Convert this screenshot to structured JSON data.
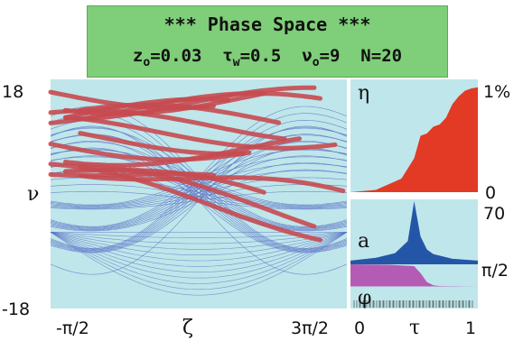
{
  "header": {
    "title": "*** Phase Space ***",
    "params": [
      {
        "sym": "z",
        "sub": "o",
        "value": "=0.03"
      },
      {
        "sym": "τ",
        "sub": "w",
        "value": "=0.5"
      },
      {
        "sym": "ν",
        "sub": "o",
        "value": "=9"
      },
      {
        "sym": "N",
        "sub": "",
        "value": "=20"
      }
    ]
  },
  "colors": {
    "panel_bg": "#bfe6ea",
    "mesh": "#5a6fc4",
    "trajectory": "#c64a50",
    "eta_fill": "#e23a25",
    "a_fill": "#2456a8",
    "phi_fill": "#b45cb4",
    "header_bg": "#7fce79"
  },
  "chart_data": [
    {
      "id": "phase-space",
      "type": "line",
      "xlabel": "ζ",
      "ylabel": "ν",
      "x_ticks": [
        "-π/2",
        "3π/2"
      ],
      "y_ticks": [
        "18",
        "-18"
      ],
      "xlim": [
        -1.5708,
        4.7124
      ],
      "ylim": [
        -18,
        18
      ]
    },
    {
      "id": "eta",
      "type": "area",
      "ylabel": "η",
      "y_ticks": [
        "1%",
        "0"
      ],
      "x": [
        0.0,
        0.2,
        0.4,
        0.5,
        0.55,
        0.6,
        0.65,
        0.7,
        0.75,
        0.8,
        0.85,
        0.9,
        0.95,
        1.0
      ],
      "values": [
        0.0,
        0.02,
        0.12,
        0.3,
        0.5,
        0.52,
        0.58,
        0.6,
        0.66,
        0.78,
        0.85,
        0.9,
        0.92,
        0.93
      ],
      "ylim": [
        0,
        1
      ]
    },
    {
      "id": "amplitude",
      "type": "area",
      "ylabel": "a",
      "y_ticks": [
        "70"
      ],
      "x": [
        0.0,
        0.2,
        0.35,
        0.45,
        0.5,
        0.55,
        0.6,
        0.65,
        0.8,
        1.0
      ],
      "values": [
        4,
        7,
        12,
        25,
        68,
        30,
        16,
        11,
        6,
        4
      ],
      "ylim": [
        0,
        70
      ]
    },
    {
      "id": "phase",
      "type": "area",
      "ylabel": "φ",
      "xlabel": "τ",
      "x_ticks": [
        "0",
        "1"
      ],
      "y_ticks": [
        "π/2"
      ],
      "x": [
        0.0,
        0.3,
        0.5,
        0.55,
        0.6,
        0.65,
        0.7,
        1.0
      ],
      "values": [
        1.0,
        0.98,
        0.92,
        0.6,
        0.2,
        0.05,
        0.02,
        0.0
      ],
      "ylim": [
        -1,
        1
      ]
    }
  ]
}
